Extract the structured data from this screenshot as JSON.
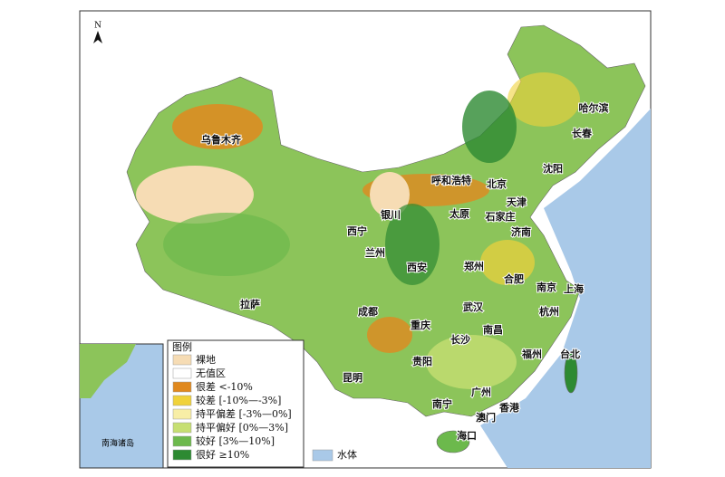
{
  "north": "N",
  "cities": [
    "哈尔滨",
    "长春",
    "沈阳",
    "乌鲁木齐",
    "呼和浩特",
    "北京",
    "天津",
    "太原",
    "石家庄",
    "银川",
    "西宁",
    "济南",
    "兰州",
    "西安",
    "郑州",
    "合肥",
    "南京",
    "上海",
    "拉萨",
    "成都",
    "武汉",
    "杭州",
    "重庆",
    "南昌",
    "长沙",
    "台北",
    "福州",
    "贵阳",
    "昆明",
    "广州",
    "南宁",
    "香港",
    "澳门",
    "海口"
  ],
  "legend": {
    "title": "图例",
    "items": [
      {
        "label": "裸地",
        "color": "#f6dcb4"
      },
      {
        "label": "无值区",
        "color": "#ffffff"
      },
      {
        "label": "很差 <-10%",
        "color": "#e0891f"
      },
      {
        "label": "较差 [-10%—-3%]",
        "color": "#f0d23a"
      },
      {
        "label": "持平偏差 [-3%—0%]",
        "color": "#f8eea6"
      },
      {
        "label": "持平偏好 [0%—3%]",
        "color": "#c6df72"
      },
      {
        "label": "较好 [3%—10%]",
        "color": "#6cb94c"
      },
      {
        "label": "很好 ≥10%",
        "color": "#2d8a32"
      }
    ]
  },
  "water": {
    "label": "水体",
    "color": "#a9c9e8"
  },
  "inset": {
    "label": "南海诸岛"
  }
}
